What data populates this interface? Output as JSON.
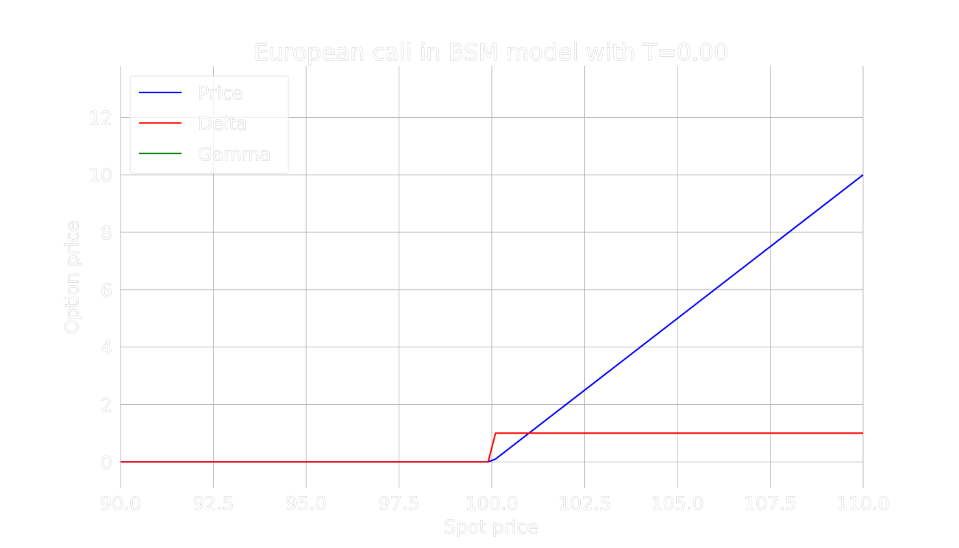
{
  "chart_data": {
    "type": "line",
    "title": "European call in BSM model with T=0.00",
    "xlabel": "Spot price",
    "ylabel": "Option price",
    "xlim": [
      90,
      110
    ],
    "ylim": [
      -0.9,
      13.8
    ],
    "xticks": [
      90,
      92.5,
      95,
      97.5,
      100,
      102.5,
      105,
      107.5,
      110
    ],
    "xtick_labels": [
      "90.0",
      "92.5",
      "95.0",
      "97.5",
      "100.0",
      "102.5",
      "105.0",
      "107.5",
      "110.0"
    ],
    "yticks": [
      0,
      2,
      4,
      6,
      8,
      10,
      12
    ],
    "ytick_labels": [
      "0",
      "2",
      "4",
      "6",
      "8",
      "10",
      "12"
    ],
    "grid": true,
    "legend_position": "upper-left",
    "series": [
      {
        "name": "Price",
        "color": "#0000ff",
        "x": [
          90,
          99.9,
          100.0,
          100.1,
          110
        ],
        "y": [
          0,
          0,
          0.05,
          0.1,
          10
        ]
      },
      {
        "name": "Delta",
        "color": "#ff0000",
        "x": [
          90,
          99.9,
          100.1,
          110
        ],
        "y": [
          0,
          0,
          1,
          1
        ]
      },
      {
        "name": "Gamma",
        "color": "#008000",
        "x": [],
        "y": []
      }
    ]
  }
}
